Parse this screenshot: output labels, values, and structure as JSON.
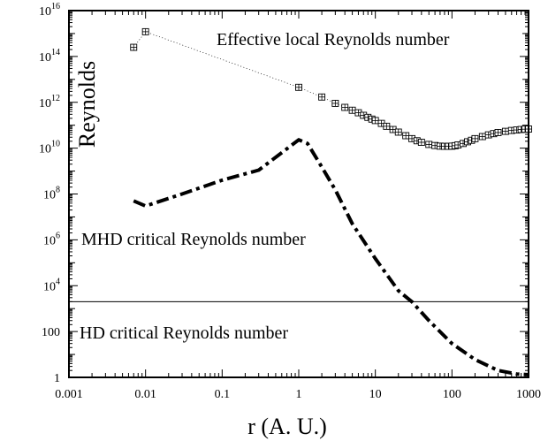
{
  "chart_data": {
    "type": "scatter",
    "x_scale": "log",
    "y_scale": "log",
    "xlim": [
      0.001,
      1000
    ],
    "ylim": [
      1,
      1e+16
    ],
    "xlabel": "r (A. U.)",
    "ylabel": "Reynolds",
    "grid": false,
    "x_ticks": [
      {
        "value": 0.001,
        "label": "0.001"
      },
      {
        "value": 0.01,
        "label": "0.01"
      },
      {
        "value": 0.1,
        "label": "0.1"
      },
      {
        "value": 1,
        "label": "1"
      },
      {
        "value": 10,
        "label": "10"
      },
      {
        "value": 100,
        "label": "100"
      },
      {
        "value": 1000,
        "label": "1000"
      }
    ],
    "y_ticks": [
      {
        "value": 1,
        "base": "1",
        "exp": ""
      },
      {
        "value": 100,
        "base": "100",
        "exp": ""
      },
      {
        "value": 10000.0,
        "base": "10",
        "exp": "4"
      },
      {
        "value": 1000000.0,
        "base": "10",
        "exp": "6"
      },
      {
        "value": 100000000.0,
        "base": "10",
        "exp": "8"
      },
      {
        "value": 10000000000.0,
        "base": "10",
        "exp": "10"
      },
      {
        "value": 1000000000000.0,
        "base": "10",
        "exp": "12"
      },
      {
        "value": 100000000000000.0,
        "base": "10",
        "exp": "14"
      },
      {
        "value": 1e+16,
        "base": "10",
        "exp": "16"
      }
    ],
    "series": [
      {
        "name": "Effective local Reynolds number",
        "style": "boxed-plus markers joined by thin dotted line",
        "color": "#000000",
        "x": [
          0.007,
          0.01,
          1,
          2,
          3,
          4,
          5,
          6,
          7,
          8,
          9,
          10,
          12,
          14,
          17,
          20,
          25,
          30,
          35,
          40,
          50,
          60,
          70,
          80,
          90,
          100,
          110,
          120,
          140,
          160,
          180,
          200,
          250,
          300,
          350,
          400,
          500,
          600,
          700,
          800,
          900,
          1000
        ],
        "y": [
          250000000000000.0,
          1200000000000000.0,
          4500000000000.0,
          1700000000000.0,
          900000000000.0,
          600000000000.0,
          450000000000.0,
          350000000000.0,
          270000000000.0,
          220000000000.0,
          185000000000.0,
          160000000000.0,
          120000000000.0,
          90000000000.0,
          65000000000.0,
          50000000000.0,
          35000000000.0,
          26000000000.0,
          21000000000.0,
          18000000000.0,
          14500000000.0,
          13000000000.0,
          12200000000.0,
          12000000000.0,
          12000000000.0,
          12200000000.0,
          12800000000.0,
          13800000000.0,
          16000000000.0,
          19000000000.0,
          22000000000.0,
          26000000000.0,
          32000000000.0,
          38000000000.0,
          43000000000.0,
          48000000000.0,
          54000000000.0,
          59000000000.0,
          62000000000.0,
          65000000000.0,
          67000000000.0,
          68000000000.0
        ]
      },
      {
        "name": "MHD critical Reynolds number",
        "style": "thick dash-dot line",
        "color": "#000000",
        "x": [
          0.007,
          0.01,
          0.03,
          0.1,
          0.3,
          1,
          1.3,
          2,
          3,
          5,
          10,
          20,
          30,
          50,
          100,
          200,
          400,
          700,
          1000
        ],
        "y": [
          50000000.0,
          30000000.0,
          100000000.0,
          400000000.0,
          1100000000.0,
          23000000000.0,
          16000000000.0,
          1500000000.0,
          150000000.0,
          5000000.0,
          150000.0,
          6000.0,
          2000.0,
          300,
          30,
          6,
          2,
          1.4,
          1.3
        ]
      },
      {
        "name": "HD critical Reynolds number",
        "style": "thin solid line",
        "color": "#000000",
        "x": [
          0.001,
          1000
        ],
        "y": [
          2000,
          2000
        ]
      }
    ],
    "annotations": [
      {
        "text": "Effective local Reynolds number",
        "position": "top-right"
      },
      {
        "text": "MHD critical Reynolds number",
        "position": "left, middle"
      },
      {
        "text": "HD critical Reynolds number",
        "position": "left, bottom"
      }
    ]
  }
}
